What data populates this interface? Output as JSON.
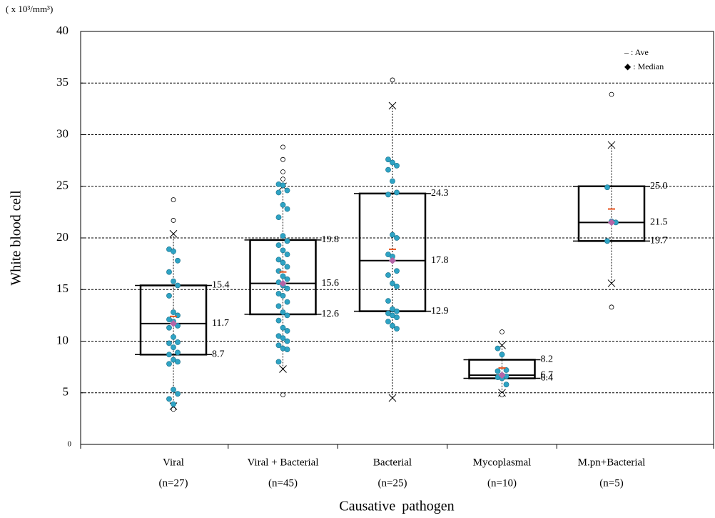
{
  "chart_data": {
    "type": "box",
    "unit_label": "( x 10³/mm³)",
    "y_label": "White blood cell",
    "x_label": "Causative pathogen",
    "categories": [
      "Viral",
      "Viral + Bacterial",
      "Bacterial",
      "Mycoplasmal",
      "M.pn+Bacterial"
    ],
    "sample_sizes": [
      "(n=27)",
      "(n=45)",
      "(n=25)",
      "(n=10)",
      "(n=5)"
    ],
    "ylim": [
      0,
      40
    ],
    "yticks": [
      0,
      5,
      10,
      15,
      20,
      25,
      30,
      35,
      40
    ],
    "grid": true,
    "legend": [
      "– : Ave",
      "◆ : Median"
    ],
    "legend_position": "upper right",
    "dot_color": "#2ea3c4",
    "mean_color": "#e8541e",
    "median_color": "#b565a7",
    "boxes": [
      {
        "q3": 15.4,
        "median": 11.7,
        "q1": 8.7,
        "value_labels": [
          "15.4",
          "11.7",
          "8.7"
        ],
        "mean": 12.4,
        "whiskers": [
          3.7,
          20.4
        ],
        "outliers": [
          23.7,
          21.7,
          3.4
        ],
        "points": [
          18.9,
          18.7,
          17.8,
          16.7,
          15.8,
          15.4,
          14.4,
          12.8,
          12.5,
          12.1,
          11.9,
          11.5,
          11.3,
          10.4,
          9.9,
          9.8,
          9.4,
          8.9,
          8.7,
          8.2,
          8.0,
          7.8,
          5.3,
          4.9,
          4.4,
          3.9
        ]
      },
      {
        "q3": 19.8,
        "median": 15.6,
        "q1": 12.6,
        "value_labels": [
          "19.8",
          "15.6",
          "12.6"
        ],
        "mean": 16.7,
        "whiskers": [
          7.3,
          25.0
        ],
        "outliers": [
          28.8,
          27.6,
          26.4,
          25.7,
          4.8
        ],
        "points": [
          25.2,
          25.1,
          24.6,
          24.4,
          23.2,
          22.8,
          22.0,
          20.2,
          19.7,
          19.3,
          18.8,
          18.4,
          17.9,
          17.6,
          17.2,
          16.8,
          16.3,
          16.0,
          15.7,
          15.4,
          15.1,
          14.6,
          14.4,
          13.8,
          13.4,
          12.8,
          12.5,
          12.0,
          11.3,
          11.0,
          10.5,
          10.3,
          10.0,
          9.6,
          9.3,
          9.2,
          8.0
        ]
      },
      {
        "q3": 24.3,
        "median": 17.8,
        "q1": 12.9,
        "value_labels": [
          "24.3",
          "17.8",
          "12.9"
        ],
        "mean": 18.9,
        "whiskers": [
          4.5,
          32.8
        ],
        "outliers": [
          35.3
        ],
        "points": [
          27.6,
          27.3,
          27.0,
          26.6,
          25.5,
          24.4,
          24.2,
          20.3,
          20.0,
          18.4,
          18.2,
          16.8,
          16.4,
          15.6,
          15.3,
          13.9,
          13.1,
          12.9,
          12.7,
          12.5,
          12.3,
          11.9,
          11.5,
          11.2
        ]
      },
      {
        "q3": 8.2,
        "median": 6.7,
        "q1": 6.4,
        "value_labels": [
          "8.2",
          "6.7",
          "6.4"
        ],
        "mean": 7.4,
        "whiskers": [
          5.0,
          9.6
        ],
        "outliers": [
          10.9,
          4.8
        ],
        "points": [
          9.3,
          8.7,
          7.2,
          7.1,
          6.7,
          6.6,
          6.5,
          6.4,
          5.8
        ]
      },
      {
        "q3": 25.0,
        "median": 21.5,
        "q1": 19.7,
        "value_labels": [
          "25.0",
          "21.5",
          "19.7"
        ],
        "mean": 22.8,
        "whiskers": [
          15.6,
          29.0
        ],
        "outliers": [
          33.9,
          13.3
        ],
        "points": [
          24.9,
          21.6,
          21.5,
          19.7
        ]
      }
    ]
  }
}
